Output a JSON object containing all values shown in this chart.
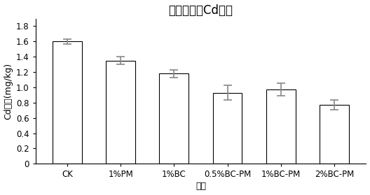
{
  "title": "土壤有效态Cd含量",
  "ylabel": "Cd浓度(mg/kg)",
  "xlabel": "处理",
  "categories": [
    "CK",
    "1%PM",
    "1%BC",
    "0.5%BC-PM",
    "1%BC-PM",
    "2%BC-PM"
  ],
  "values": [
    1.6,
    1.35,
    1.18,
    0.93,
    0.97,
    0.77
  ],
  "errors": [
    0.03,
    0.05,
    0.05,
    0.1,
    0.08,
    0.06
  ],
  "ylim": [
    0,
    1.9
  ],
  "yticks": [
    0,
    0.2,
    0.4,
    0.6,
    0.8,
    1.0,
    1.2,
    1.4,
    1.6,
    1.8
  ],
  "bar_color": "#FFFFFF",
  "bar_edgecolor": "#000000",
  "error_color": "#888888",
  "background_color": "#FFFFFF",
  "title_fontsize": 12,
  "label_fontsize": 9,
  "tick_fontsize": 8.5
}
